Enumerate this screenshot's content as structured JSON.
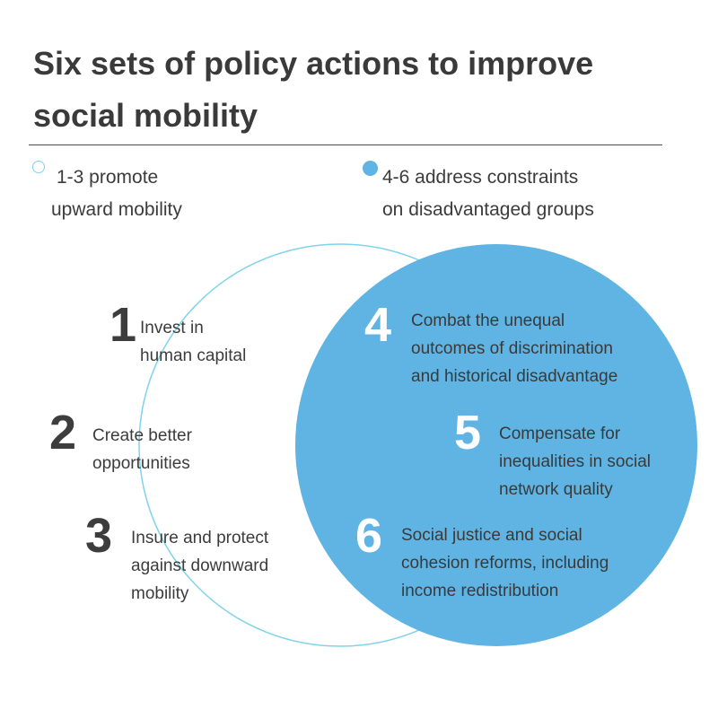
{
  "title": {
    "line1": "Six sets of policy actions to improve",
    "line2": "social mobility"
  },
  "legend": {
    "open": {
      "line1": "1-3 promote",
      "line2": "upward mobility",
      "icon": "open-circle-icon"
    },
    "filled": {
      "line1": "4-6 address constraints",
      "line2": "on disadvantaged groups",
      "icon": "filled-circle-icon"
    }
  },
  "colors": {
    "outline": "#7fd3ea",
    "fill": "#5fb4e3",
    "title": "#3a3a3a",
    "text": "#3c3c3c"
  },
  "actions": [
    {
      "number": "1",
      "lines": [
        "Invest in",
        "human capital"
      ]
    },
    {
      "number": "2",
      "lines": [
        "Create better",
        "opportunities"
      ]
    },
    {
      "number": "3",
      "lines": [
        "Insure and protect",
        "against downward",
        "mobility"
      ]
    },
    {
      "number": "4",
      "lines": [
        "Combat the unequal",
        "outcomes of discrimination",
        "and historical disadvantage"
      ]
    },
    {
      "number": "5",
      "lines": [
        "Compensate for",
        "inequalities in social",
        "network quality"
      ]
    },
    {
      "number": "6",
      "lines": [
        "Social justice and social",
        "cohesion reforms, including",
        "income redistribution"
      ]
    }
  ]
}
